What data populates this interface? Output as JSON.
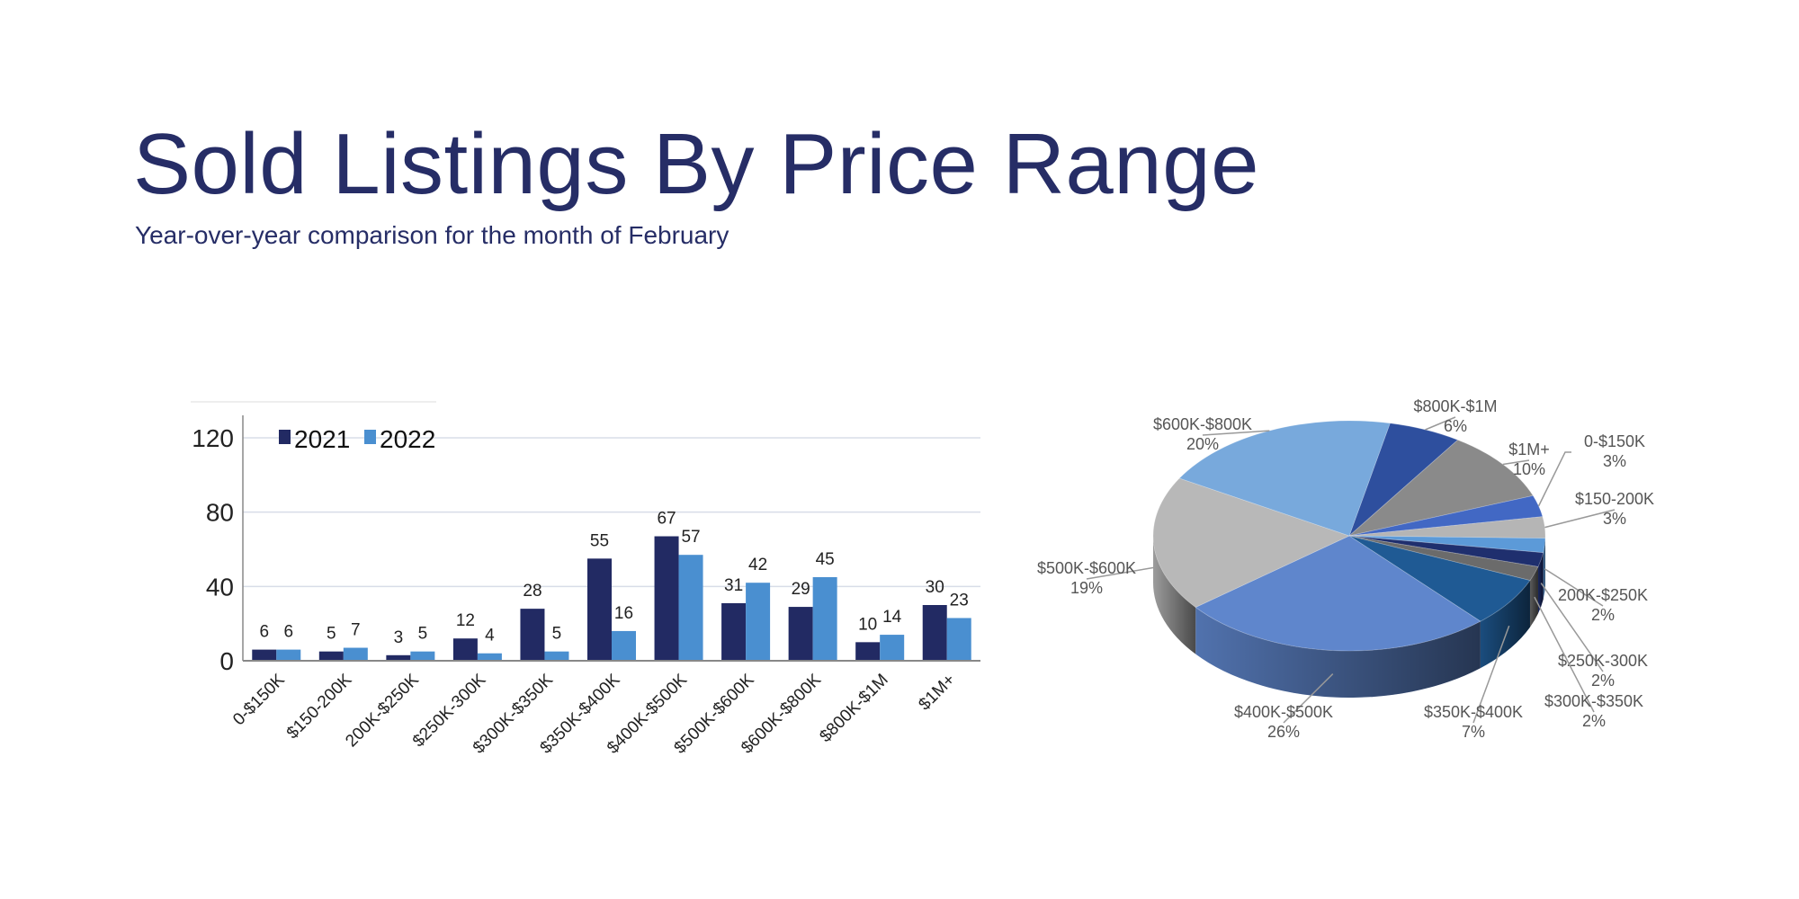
{
  "header": {
    "title": "Sold Listings By Price Range",
    "subtitle": "Year-over-year comparison for the month of February"
  },
  "chart_data": [
    {
      "type": "bar",
      "title": "",
      "xlabel": "",
      "ylabel": "",
      "categories": [
        "0-$150K",
        "$150-200K",
        "200K-$250K",
        "$250K-300K",
        "$300K-$350K",
        "$350K-$400K",
        "$400K-$500K",
        "$500K-$600K",
        "$600K-$800K",
        "$800K-$1M",
        "$1M+"
      ],
      "series": [
        {
          "name": "2021",
          "color": "#222a63",
          "values": [
            6,
            5,
            3,
            12,
            28,
            55,
            67,
            31,
            29,
            10,
            30
          ]
        },
        {
          "name": "2022",
          "color": "#4a8fd0",
          "values": [
            6,
            7,
            5,
            4,
            5,
            16,
            57,
            42,
            45,
            14,
            23
          ]
        }
      ],
      "ylim": [
        0,
        120
      ],
      "yticks": [
        0,
        40,
        80,
        120
      ],
      "grid": true,
      "legend": "top-left",
      "data_labels": true
    },
    {
      "type": "pie",
      "style": "3d",
      "title": "",
      "slices": [
        {
          "label": "$800K-$1M",
          "pct_label": "6%",
          "value": 6,
          "color": "#2e4f9e"
        },
        {
          "label": "$1M+",
          "pct_label": "10%",
          "value": 10,
          "color": "#8a8a8a"
        },
        {
          "label": "0-$150K",
          "pct_label": "3%",
          "value": 3,
          "color": "#4268c4"
        },
        {
          "label": "$150-200K",
          "pct_label": "3%",
          "value": 3,
          "color": "#b5b5b5"
        },
        {
          "label": "200K-$250K",
          "pct_label": "2%",
          "value": 2,
          "color": "#5c9ad8"
        },
        {
          "label": "$250K-300K",
          "pct_label": "2%",
          "value": 2,
          "color": "#1f2f6e"
        },
        {
          "label": "$300K-$350K",
          "pct_label": "2%",
          "value": 2,
          "color": "#6b6b6b"
        },
        {
          "label": "$350K-$400K",
          "pct_label": "7%",
          "value": 7,
          "color": "#1f5a94"
        },
        {
          "label": "$400K-$500K",
          "pct_label": "26%",
          "value": 26,
          "color": "#5f86cc"
        },
        {
          "label": "$500K-$600K",
          "pct_label": "19%",
          "value": 19,
          "color": "#b8b8b8"
        },
        {
          "label": "$600K-$800K",
          "pct_label": "20%",
          "value": 20,
          "color": "#78a9dc"
        }
      ]
    }
  ]
}
